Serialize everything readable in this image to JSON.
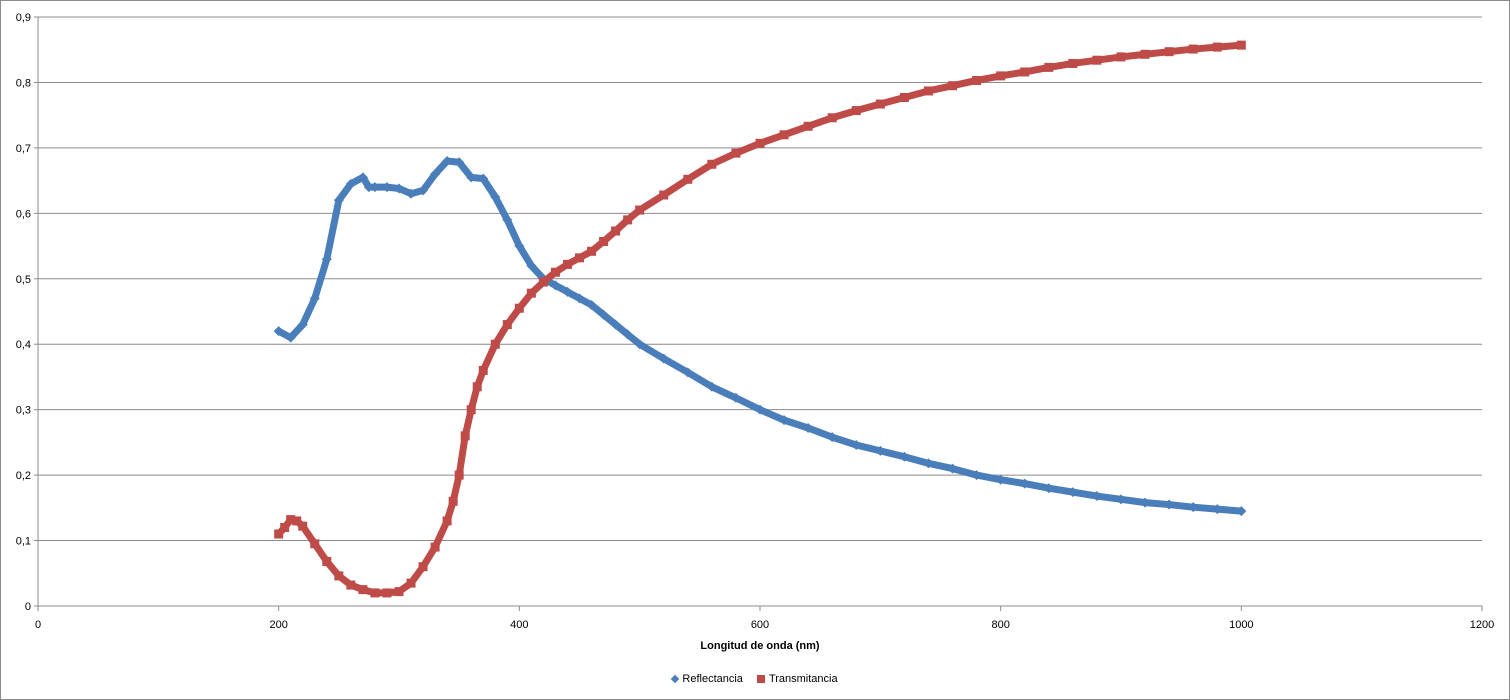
{
  "chart_data": {
    "type": "scatter",
    "title": "",
    "xlabel": "Longitud de onda (nm)",
    "ylabel": "",
    "xlim": [
      0,
      1200
    ],
    "ylim": [
      0,
      0.9
    ],
    "x_ticks": [
      0,
      200,
      400,
      600,
      800,
      1000,
      1200
    ],
    "x_tick_labels": [
      "0",
      "200",
      "400",
      "600",
      "800",
      "1000",
      "1200"
    ],
    "y_ticks": [
      0,
      0.1,
      0.2,
      0.3,
      0.4,
      0.5,
      0.6,
      0.7,
      0.8,
      0.9
    ],
    "y_tick_labels": [
      "0",
      "0,1",
      "0,2",
      "0,3",
      "0,4",
      "0,5",
      "0,6",
      "0,7",
      "0,8",
      "0,9"
    ],
    "grid": true,
    "legend_position": "bottom",
    "series": [
      {
        "name": "Reflectancia",
        "color": "#4a7ebb",
        "marker": "diamond",
        "x": [
          200,
          210,
          220,
          230,
          240,
          250,
          260,
          270,
          275,
          280,
          290,
          300,
          310,
          320,
          330,
          340,
          350,
          360,
          370,
          380,
          390,
          400,
          410,
          420,
          430,
          440,
          450,
          460,
          470,
          480,
          490,
          500,
          520,
          540,
          560,
          580,
          600,
          620,
          640,
          660,
          680,
          700,
          720,
          740,
          760,
          780,
          800,
          820,
          840,
          860,
          880,
          900,
          920,
          940,
          960,
          980,
          1000
        ],
        "y": [
          0.42,
          0.41,
          0.43,
          0.47,
          0.53,
          0.62,
          0.645,
          0.655,
          0.64,
          0.64,
          0.64,
          0.638,
          0.63,
          0.635,
          0.66,
          0.68,
          0.678,
          0.655,
          0.653,
          0.625,
          0.59,
          0.55,
          0.52,
          0.5,
          0.49,
          0.48,
          0.47,
          0.46,
          0.445,
          0.43,
          0.415,
          0.4,
          0.378,
          0.357,
          0.335,
          0.318,
          0.3,
          0.284,
          0.272,
          0.258,
          0.246,
          0.237,
          0.228,
          0.218,
          0.21,
          0.2,
          0.193,
          0.187,
          0.18,
          0.174,
          0.168,
          0.163,
          0.158,
          0.155,
          0.151,
          0.148,
          0.145
        ]
      },
      {
        "name": "Transmitancia",
        "color": "#be4b48",
        "marker": "square",
        "x": [
          200,
          205,
          210,
          215,
          220,
          230,
          240,
          250,
          260,
          270,
          280,
          290,
          300,
          310,
          320,
          330,
          340,
          345,
          350,
          355,
          360,
          365,
          370,
          380,
          390,
          400,
          410,
          420,
          430,
          440,
          450,
          460,
          470,
          480,
          490,
          500,
          520,
          540,
          560,
          580,
          600,
          620,
          640,
          660,
          680,
          700,
          720,
          740,
          760,
          780,
          800,
          820,
          840,
          860,
          880,
          900,
          920,
          940,
          960,
          980,
          1000
        ],
        "y": [
          0.11,
          0.12,
          0.132,
          0.13,
          0.122,
          0.095,
          0.068,
          0.046,
          0.032,
          0.025,
          0.02,
          0.02,
          0.022,
          0.035,
          0.06,
          0.09,
          0.13,
          0.16,
          0.2,
          0.26,
          0.3,
          0.335,
          0.36,
          0.4,
          0.43,
          0.455,
          0.478,
          0.495,
          0.51,
          0.522,
          0.532,
          0.542,
          0.557,
          0.573,
          0.59,
          0.605,
          0.628,
          0.652,
          0.675,
          0.692,
          0.707,
          0.72,
          0.733,
          0.746,
          0.757,
          0.767,
          0.777,
          0.787,
          0.795,
          0.803,
          0.81,
          0.816,
          0.823,
          0.829,
          0.834,
          0.839,
          0.843,
          0.847,
          0.851,
          0.854,
          0.857
        ]
      }
    ]
  }
}
